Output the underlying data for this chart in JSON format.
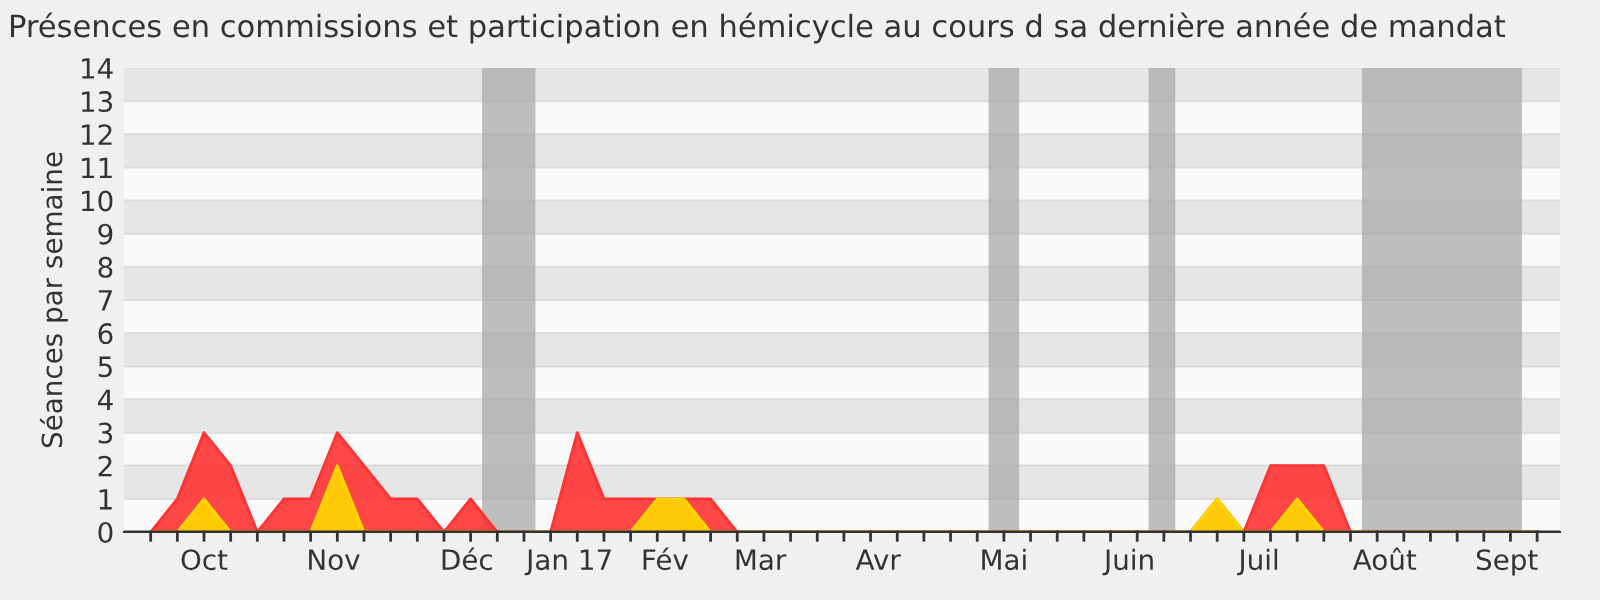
{
  "chart_data": {
    "type": "area",
    "title": "Présences en commissions et participation en hémicycle au cours d sa dernière année de mandat",
    "ylabel": "Séances par semaine",
    "x": [
      "2016-10-02",
      "2016-10-09",
      "2016-10-16",
      "2016-10-23",
      "2016-10-30",
      "2016-11-06",
      "2016-11-13",
      "2016-11-20",
      "2016-11-27",
      "2016-12-04",
      "2016-12-11",
      "2016-12-18",
      "2016-12-25",
      "2017-01-01",
      "2017-01-08",
      "2017-01-15",
      "2017-01-22",
      "2017-01-29",
      "2017-02-05",
      "2017-02-12",
      "2017-02-19",
      "2017-02-26",
      "2017-03-05",
      "2017-03-12",
      "2017-03-19",
      "2017-03-26",
      "2017-04-02",
      "2017-04-09",
      "2017-04-16",
      "2017-04-23",
      "2017-04-30",
      "2017-05-07",
      "2017-05-14",
      "2017-05-21",
      "2017-05-28",
      "2017-06-04",
      "2017-06-11",
      "2017-06-18",
      "2017-06-25",
      "2017-07-02",
      "2017-07-09",
      "2017-07-16",
      "2017-07-23",
      "2017-07-30",
      "2017-08-06",
      "2017-08-13",
      "2017-08-20",
      "2017-08-27",
      "2017-09-03",
      "2017-09-10",
      "2017-09-17",
      "2017-09-24",
      "2017-10-01"
    ],
    "series": [
      {
        "color": "#ff3333",
        "values": [
          0,
          1,
          3,
          2,
          0,
          1,
          1,
          3,
          2,
          1,
          1,
          0,
          1,
          0,
          0,
          0,
          3,
          1,
          1,
          1,
          1,
          1,
          0,
          0,
          0,
          0,
          0,
          0,
          0,
          0,
          0,
          0,
          0,
          0,
          0,
          0,
          0,
          0,
          0,
          0,
          1,
          0,
          2,
          2,
          2,
          0,
          0,
          0,
          0,
          0,
          0,
          0,
          0
        ]
      },
      {
        "color": "#ffd700",
        "values": [
          0,
          0,
          1,
          0,
          0,
          0,
          0,
          2,
          0,
          0,
          0,
          0,
          0,
          0,
          0,
          0,
          0,
          0,
          0,
          1,
          1,
          0,
          0,
          0,
          0,
          0,
          0,
          0,
          0,
          0,
          0,
          0,
          0,
          0,
          0,
          0,
          0,
          0,
          0,
          0,
          1,
          0,
          0,
          1,
          0,
          0,
          0,
          0,
          0,
          0,
          0,
          0,
          0
        ]
      }
    ],
    "xlim": [
      "2016-09-25",
      "2017-10-07"
    ],
    "xticks": [
      {
        "value": "2016-10-16",
        "label": "Oct"
      },
      {
        "value": "2016-11-19",
        "label": "Nov"
      },
      {
        "value": "2016-12-24",
        "label": "Déc"
      },
      {
        "value": "2017-01-20",
        "label": "Jan 17"
      },
      {
        "value": "2017-02-14",
        "label": "Fév"
      },
      {
        "value": "2017-03-11",
        "label": "Mar"
      },
      {
        "value": "2017-04-11",
        "label": "Avr"
      },
      {
        "value": "2017-05-14",
        "label": "Mai"
      },
      {
        "value": "2017-06-16",
        "label": "Juin"
      },
      {
        "value": "2017-07-20",
        "label": "Juil"
      },
      {
        "value": "2017-08-22",
        "label": "Août"
      },
      {
        "value": "2017-09-23",
        "label": "Sept"
      }
    ],
    "ylim": [
      0,
      14
    ],
    "yticks": [
      0,
      1,
      2,
      3,
      4,
      5,
      6,
      7,
      8,
      9,
      10,
      11,
      12,
      13,
      14
    ],
    "grid": "y",
    "bands": [
      {
        "axis": "x",
        "from": "2016-12-28",
        "to": "2017-01-11",
        "color": "#aaaaaa"
      },
      {
        "axis": "x",
        "from": "2017-05-10",
        "to": "2017-05-18",
        "color": "#aaaaaa"
      },
      {
        "axis": "x",
        "from": "2017-06-21",
        "to": "2017-06-28",
        "color": "#aaaaaa"
      },
      {
        "axis": "x",
        "from": "2017-08-16",
        "to": "2017-09-27",
        "color": "#aaaaaa"
      }
    ]
  }
}
